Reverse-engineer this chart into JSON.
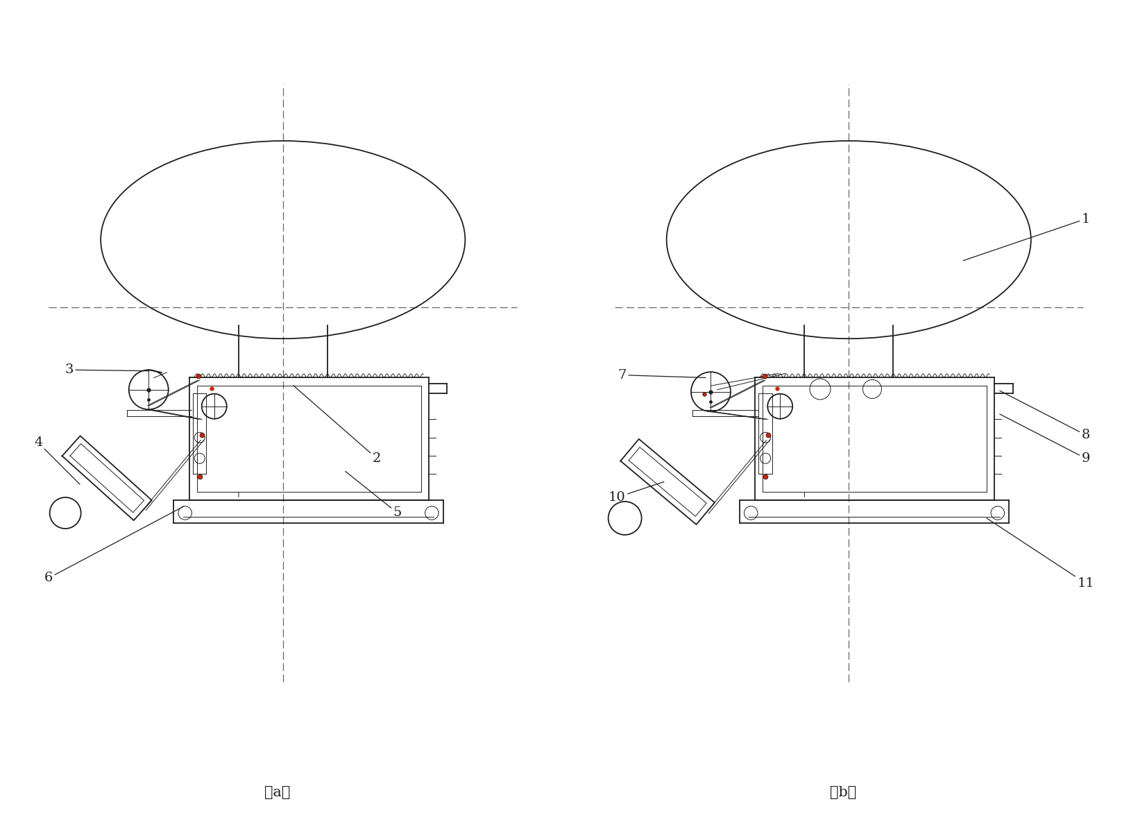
{
  "bg_color": "#ffffff",
  "lc": "#1e1e1e",
  "dc": "#666666",
  "rc": "#cc2200",
  "fig_w": 16.31,
  "fig_h": 12.08,
  "caption_a": "（a）",
  "caption_b": "（b）",
  "note_fontsize": 15,
  "label_fontsize": 14
}
